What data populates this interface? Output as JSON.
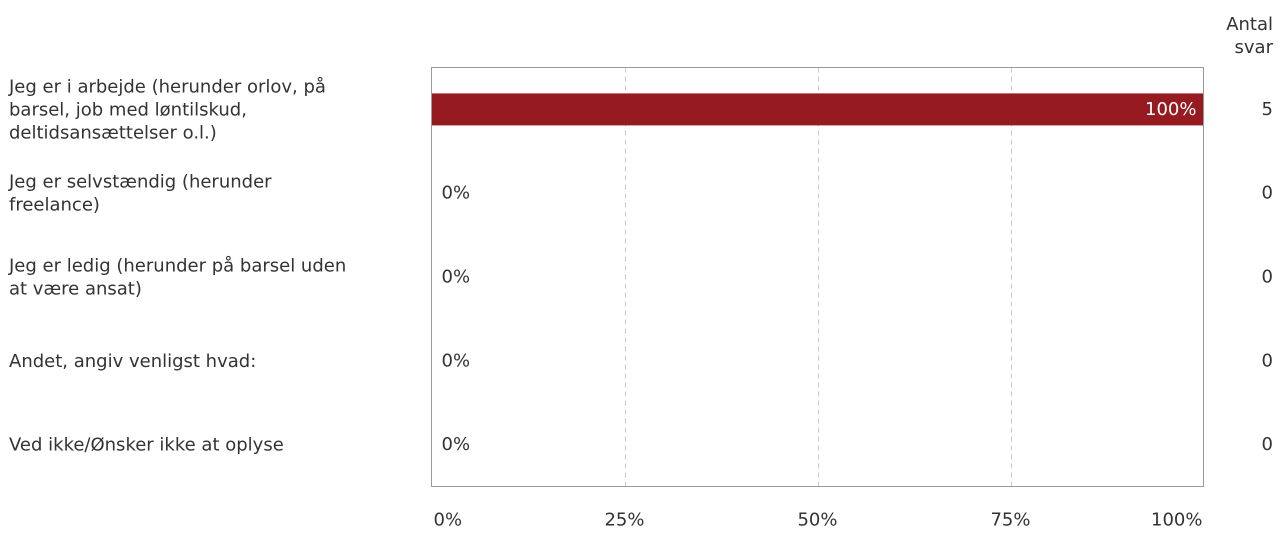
{
  "chart_data": {
    "type": "bar",
    "orientation": "horizontal",
    "categories": [
      "Jeg er i arbejde (herunder orlov, på barsel, job med løntilskud, deltidsansættelser o.l.)",
      "Jeg er selvstændig (herunder freelance)",
      "Jeg er ledig (herunder på barsel uden at være ansat)",
      "Andet, angiv venligst hvad:",
      "Ved ikke/Ønsker ikke at oplyse"
    ],
    "category_lines": [
      [
        "Jeg er i arbejde (herunder orlov, på",
        "barsel, job med løntilskud,",
        "deltidsansættelser o.l.)"
      ],
      [
        "Jeg er selvstændig (herunder",
        "freelance)"
      ],
      [
        "Jeg er ledig (herunder på barsel uden",
        "at være ansat)"
      ],
      [
        "Andet, angiv venligst hvad:"
      ],
      [
        "Ved ikke/Ønsker ikke at oplyse"
      ]
    ],
    "values": [
      100,
      0,
      0,
      0,
      0
    ],
    "value_labels": [
      "100%",
      "0%",
      "0%",
      "0%",
      "0%"
    ],
    "counts": [
      "5",
      "0",
      "0",
      "0",
      "0"
    ],
    "count_header_lines": [
      "Antal",
      "svar"
    ],
    "xlim": [
      0,
      100
    ],
    "xticks": [
      0,
      25,
      50,
      75,
      100
    ],
    "xtick_labels": [
      "0%",
      "25%",
      "50%",
      "75%",
      "100%"
    ],
    "grid": true,
    "bar_color": "#961b20",
    "title": "",
    "xlabel": "",
    "ylabel": ""
  }
}
